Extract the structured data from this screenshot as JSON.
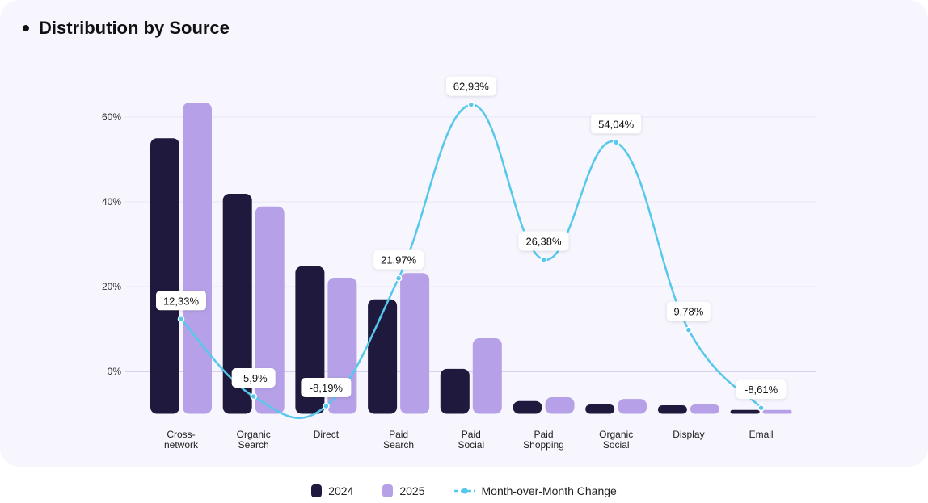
{
  "title": "Distribution by Source",
  "chart_data": {
    "type": "bar",
    "categories": [
      [
        "Cross-",
        "network"
      ],
      [
        "Organic",
        "Search"
      ],
      [
        "Direct"
      ],
      [
        "Paid",
        "Search"
      ],
      [
        "Paid",
        "Social"
      ],
      [
        "Paid",
        "Shopping"
      ],
      [
        "Organic",
        "Social"
      ],
      [
        "Display"
      ],
      [
        "Email"
      ]
    ],
    "yticks": [
      "0%",
      "20%",
      "40%",
      "60%"
    ],
    "ytick_values": [
      0,
      20,
      40,
      60
    ],
    "ylim": [
      -10,
      70
    ],
    "grid": true,
    "series": [
      {
        "name": "2024",
        "type": "bar",
        "color": "#1f1a3d",
        "values": [
          55,
          41.9,
          24.8,
          17,
          0.6,
          -7,
          -7.8,
          -8,
          -9.1
        ]
      },
      {
        "name": "2025",
        "type": "bar",
        "color": "#b6a1e8",
        "values": [
          63.4,
          38.9,
          22.1,
          23.2,
          7.8,
          -6.1,
          -6.5,
          -7.8,
          -9.1
        ]
      },
      {
        "name": "Month-over-Month Change",
        "type": "line",
        "color": "#55c8ec",
        "values": [
          12.33,
          -5.9,
          -8.19,
          21.97,
          62.93,
          26.38,
          54.04,
          9.78,
          -8.61
        ],
        "labels": [
          "12,33%",
          "-5,9%",
          "-8,19%",
          "21,97%",
          "62,93%",
          "26,38%",
          "54,04%",
          "9,78%",
          "-8,61%"
        ]
      }
    ],
    "legend": "bottom-center"
  }
}
